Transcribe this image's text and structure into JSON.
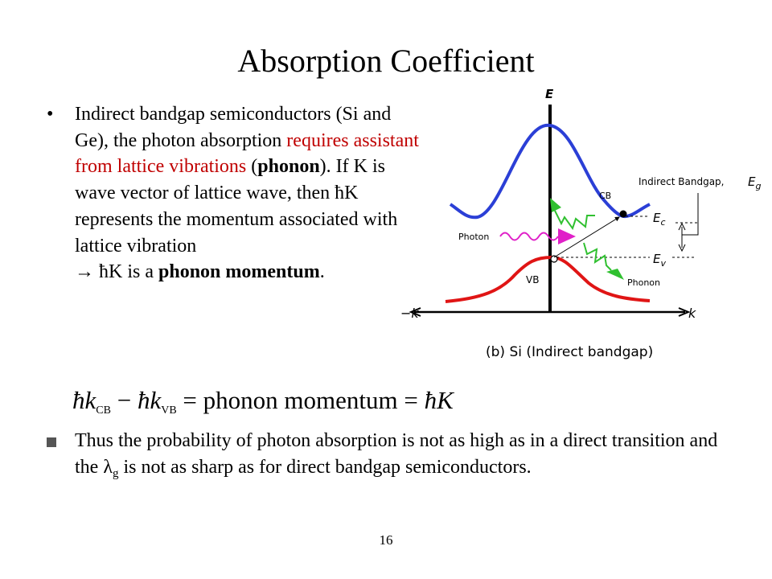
{
  "slide": {
    "title": "Absorption Coefficient",
    "page_number": "16"
  },
  "bullet1": {
    "marker": "•",
    "part1": "Indirect bandgap semiconductors (Si and Ge), the photon absorption ",
    "red_text": "requires assistant from lattice vibrations",
    "part2": " (",
    "bold1": "phonon",
    "part3": "). If K is wave vector of lattice wave, then ħK represents the momentum associated with lattice vibration",
    "arrow": "→",
    "part4": " ħK is a ",
    "bold2": "phonon momentum",
    "part5": "."
  },
  "equation": {
    "hbar1": "ħk",
    "sub_cb": "CB",
    "minus": " − ",
    "hbar2": "ħk",
    "sub_vb": "VB",
    "rest": " = phonon momentum = ",
    "hbarK": "ħK"
  },
  "bullet2": {
    "part1": "Thus the probability of photon absorption is not as high as in a direct transition and the ",
    "lambda": "λ",
    "sub_g": "g",
    "part2": " is not as sharp as for direct bandgap semiconductors."
  },
  "diagram": {
    "label_E": "E",
    "label_k": "k",
    "label_minus_k": "−k",
    "label_CB": "CB",
    "label_VB": "VB",
    "label_Ec": "E",
    "label_Ec_sub": "c",
    "label_Ev": "E",
    "label_Ev_sub": "v",
    "label_indirect": "Indirect  Bandgap,",
    "label_Eg": "E",
    "label_Eg_sub": "g",
    "label_photon": "Photon",
    "label_phonon": "Phonon",
    "caption": "(b) Si (Indirect bandgap)",
    "colors": {
      "cb": "#2b3fd6",
      "vb": "#e01515",
      "photon": "#e020c8",
      "phonon": "#30c030"
    }
  }
}
